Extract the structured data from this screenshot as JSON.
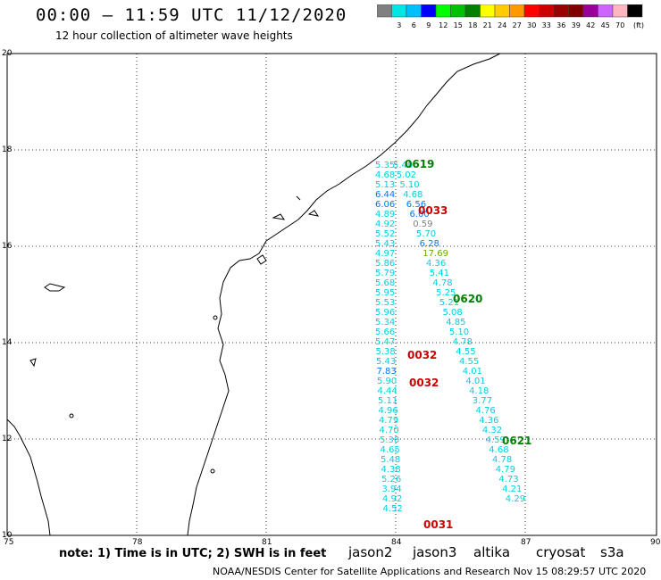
{
  "header": {
    "title": "00:00 – 11:59 UTC 11/12/2020",
    "subtitle": "12 hour collection of altimeter wave heights"
  },
  "legend": {
    "unit": "(ft)",
    "bins": [
      {
        "label": "",
        "color": "#808080"
      },
      {
        "label": "3",
        "color": "#00e5e5"
      },
      {
        "label": "6",
        "color": "#00bfff"
      },
      {
        "label": "9",
        "color": "#0000ff"
      },
      {
        "label": "12",
        "color": "#00ff00"
      },
      {
        "label": "15",
        "color": "#00c000"
      },
      {
        "label": "18",
        "color": "#008000"
      },
      {
        "label": "21",
        "color": "#ffff00"
      },
      {
        "label": "24",
        "color": "#ffcc00"
      },
      {
        "label": "27",
        "color": "#ff9900"
      },
      {
        "label": "30",
        "color": "#ff0000"
      },
      {
        "label": "33",
        "color": "#cc0000"
      },
      {
        "label": "36",
        "color": "#990000"
      },
      {
        "label": "39",
        "color": "#800000"
      },
      {
        "label": "42",
        "color": "#990099"
      },
      {
        "label": "45",
        "color": "#cc66ff"
      },
      {
        "label": "70",
        "color": "#ffb6c1"
      },
      {
        "label": "",
        "color": "#000000"
      }
    ]
  },
  "map": {
    "lat_labels": [
      "20",
      "18",
      "16",
      "14",
      "12",
      "10"
    ],
    "lon_labels": [
      "75",
      "78",
      "81",
      "84",
      "87",
      "90"
    ]
  },
  "tracks": [
    {
      "time": "0619",
      "color": "#008000"
    },
    {
      "time": "0033",
      "color": "#cc0000"
    },
    {
      "time": "0620",
      "color": "#008000"
    },
    {
      "time": "0032",
      "color": "#cc0000"
    },
    {
      "time": "0032",
      "color": "#cc0000"
    },
    {
      "time": "0621",
      "color": "#008000"
    },
    {
      "time": "0031",
      "color": "#cc0000"
    }
  ],
  "wave_heights": {
    "track_a": [
      "5.35",
      "5.40",
      "4.68",
      "5.02",
      "5.13",
      "5.10",
      "6.44",
      "4.68",
      "6.06",
      "6.56",
      "4.89",
      "6.00",
      "4.92",
      "0.59",
      "5.52",
      "5.70",
      "5.43",
      "6.28",
      "4.97",
      "17.69",
      "5.86",
      "4.36",
      "5.79",
      "5.41",
      "5.68",
      "4.78",
      "5.95",
      "5.25",
      "5.53",
      "5.21",
      "5.96",
      "5.08",
      "5.34",
      "4.85",
      "5.66",
      "5.10",
      "5.47",
      "4.78",
      "5.38",
      "4.55",
      "5.43",
      "4.55",
      "7.83",
      "4.01",
      "5.90",
      "4.01",
      "4.44",
      "4.18",
      "5.11",
      "3.77",
      "4.96",
      "4.76",
      "4.79",
      "4.36",
      "4.70",
      "4.32",
      "5.30",
      "4.59",
      "4.65",
      "4.68",
      "5.48",
      "4.78",
      "4.38",
      "4.79",
      "5.26",
      "4.73",
      "3.94",
      "4.21",
      "4.92",
      "4.29",
      "4.52"
    ]
  },
  "footer": {
    "note": "note: 1) Time is in UTC; 2) SWH is in feet",
    "satellites": [
      {
        "name": "jason2",
        "color": "#0000cc"
      },
      {
        "name": "jason3",
        "color": "#008000"
      },
      {
        "name": "altika",
        "color": "#ff9900"
      },
      {
        "name": "cryosat",
        "color": "#cc0000"
      },
      {
        "name": "s3a",
        "color": "#990000"
      }
    ],
    "credit": "NOAA/NESDIS Center for Satellite Applications and Research   Nov 15 08:29:57 UTC 2020"
  }
}
